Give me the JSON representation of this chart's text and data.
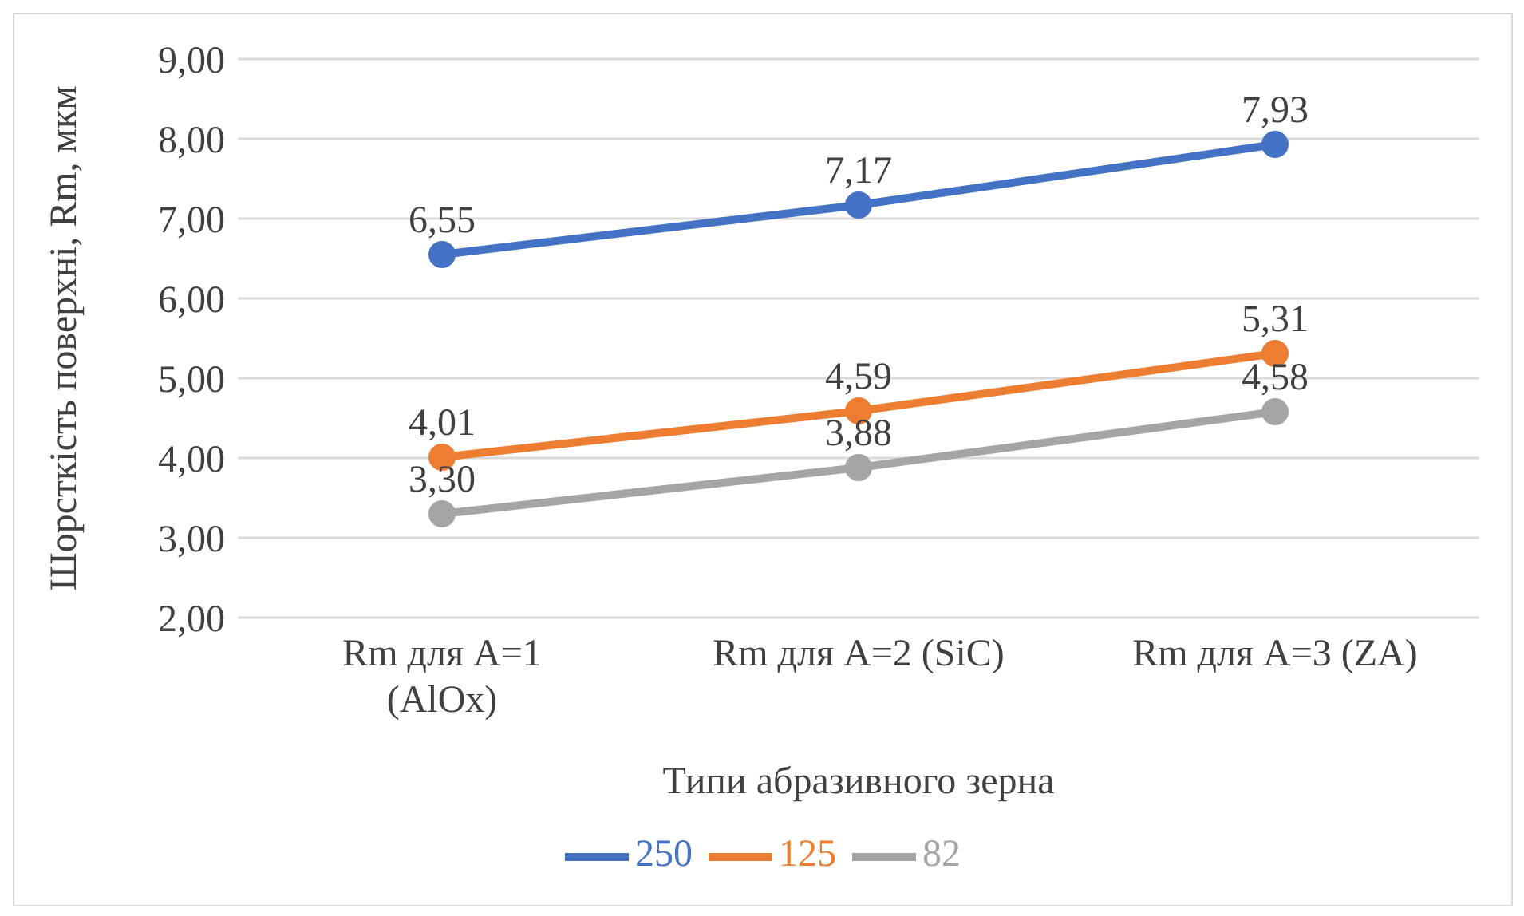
{
  "chart_data": {
    "type": "line",
    "xlabel": "Типи абразивного зерна",
    "ylabel": "Шорсткість поверхні, Rm, мкм",
    "categories": [
      "Rm для A=1 (AlOx)",
      "Rm для A=2 (SiC)",
      "Rm для A=3 (ZA)"
    ],
    "series": [
      {
        "name": "250",
        "color": "#4472c4",
        "values": [
          6.55,
          7.17,
          7.93
        ],
        "value_labels": [
          "6,55",
          "7,17",
          "7,93"
        ]
      },
      {
        "name": "125",
        "color": "#ed7d31",
        "values": [
          4.01,
          4.59,
          5.31
        ],
        "value_labels": [
          "4,01",
          "4,59",
          "5,31"
        ]
      },
      {
        "name": "82",
        "color": "#a5a5a5",
        "values": [
          3.3,
          3.88,
          4.58
        ],
        "value_labels": [
          "3,30",
          "3,88",
          "4,58"
        ]
      }
    ],
    "ylim": [
      2,
      9
    ],
    "yticks": [
      {
        "value": 2,
        "label": "2,00"
      },
      {
        "value": 3,
        "label": "3,00"
      },
      {
        "value": 4,
        "label": "4,00"
      },
      {
        "value": 5,
        "label": "5,00"
      },
      {
        "value": 6,
        "label": "6,00"
      },
      {
        "value": 7,
        "label": "7,00"
      },
      {
        "value": 8,
        "label": "8,00"
      },
      {
        "value": 9,
        "label": "9,00"
      }
    ],
    "grid": "y",
    "legend": "bottom",
    "marker": "circle",
    "line_style": "solid"
  }
}
